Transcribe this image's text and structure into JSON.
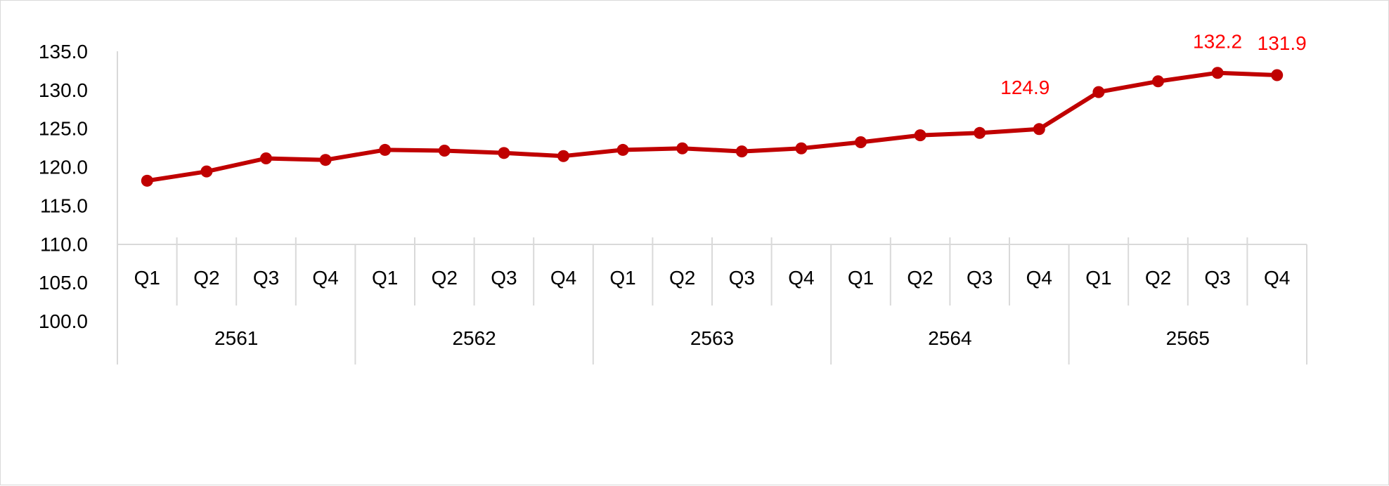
{
  "chart_data": {
    "type": "line",
    "title": "",
    "xlabel": "",
    "ylabel": "",
    "ylim": [
      100,
      135
    ],
    "yticks": [
      "135.0",
      "130.0",
      "125.0",
      "120.0",
      "115.0",
      "110.0",
      "105.0",
      "100.0"
    ],
    "ytick_values": [
      135,
      130,
      125,
      120,
      115,
      110,
      105,
      100
    ],
    "years": [
      "2561",
      "2562",
      "2563",
      "2564",
      "2565"
    ],
    "quarters": [
      "Q1",
      "Q2",
      "Q3",
      "Q4"
    ],
    "categories": [
      "2561 Q1",
      "2561 Q2",
      "2561 Q3",
      "2561 Q4",
      "2562 Q1",
      "2562 Q2",
      "2562 Q3",
      "2562 Q4",
      "2563 Q1",
      "2563 Q2",
      "2563 Q3",
      "2563 Q4",
      "2564 Q1",
      "2564 Q2",
      "2564 Q3",
      "2564 Q4",
      "2565 Q1",
      "2565 Q2",
      "2565 Q3",
      "2565 Q4"
    ],
    "series": [
      {
        "values": [
          118.2,
          119.4,
          121.1,
          120.9,
          122.2,
          122.1,
          121.8,
          121.4,
          122.2,
          122.4,
          122.0,
          122.4,
          123.2,
          124.1,
          124.4,
          124.9,
          129.7,
          131.1,
          132.2,
          131.9
        ],
        "color": "#c00000"
      }
    ],
    "data_labels": [
      {
        "index": 15,
        "text": "124.9"
      },
      {
        "index": 18,
        "text": "132.2"
      },
      {
        "index": 19,
        "text": "131.9"
      }
    ],
    "label_color": "#ff0000",
    "grid": false,
    "legend": "none"
  }
}
